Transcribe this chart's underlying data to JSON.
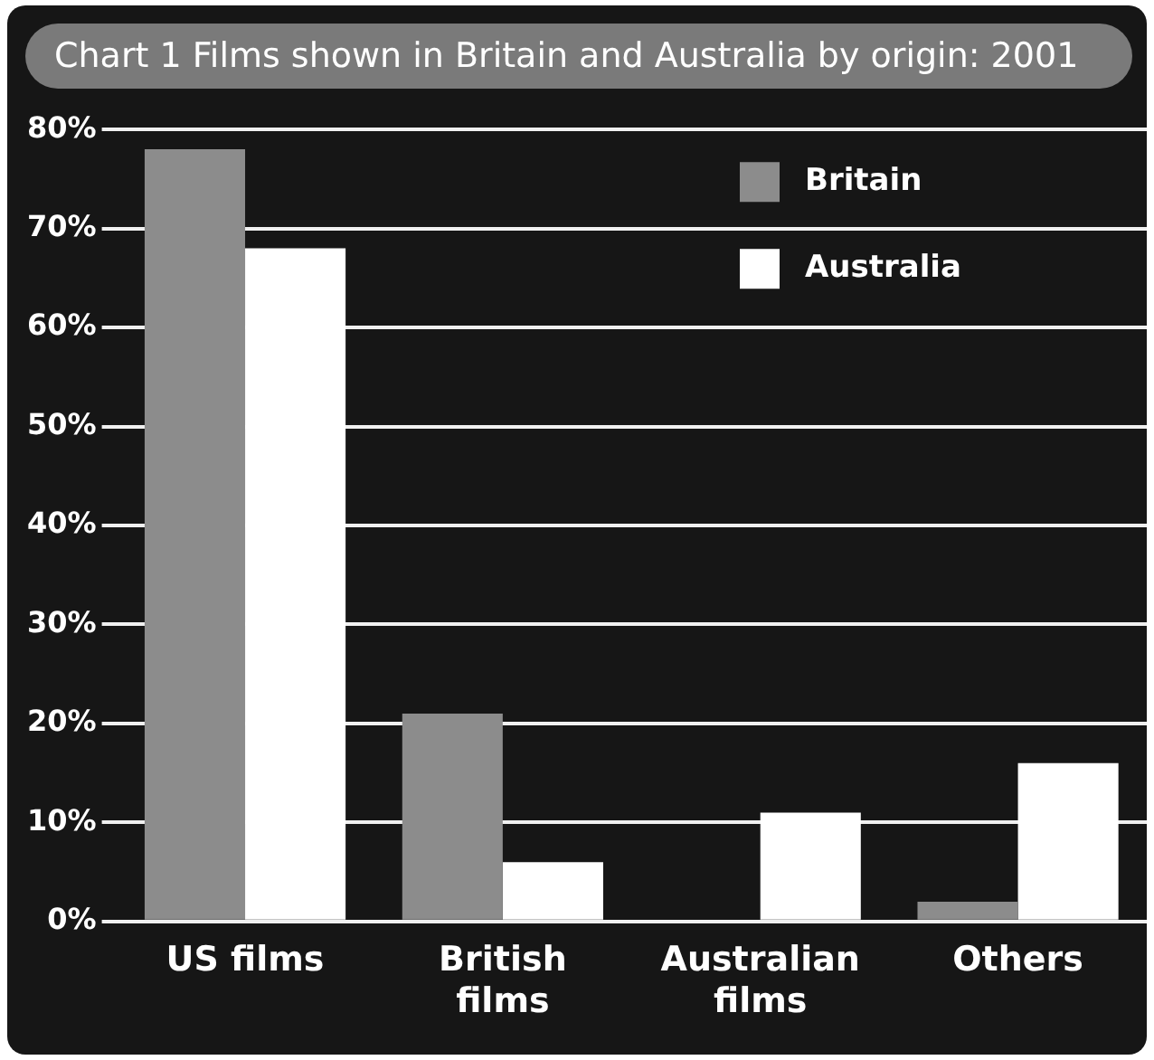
{
  "chart_data": {
    "type": "bar",
    "title": "Chart 1  Films shown in Britain and Australia by origin: 2001",
    "categories": [
      "US films",
      "British films",
      "Australian films",
      "Others"
    ],
    "series": [
      {
        "name": "Britain",
        "color": "#8c8c8c",
        "values": [
          78,
          21,
          0,
          2
        ]
      },
      {
        "name": "Australia",
        "color": "#ffffff",
        "values": [
          68,
          6,
          11,
          16
        ]
      }
    ],
    "ylim": [
      0,
      80
    ],
    "yticks": [
      {
        "value": 0,
        "label": "0%"
      },
      {
        "value": 10,
        "label": "10%"
      },
      {
        "value": 20,
        "label": "20%"
      },
      {
        "value": 30,
        "label": "30%"
      },
      {
        "value": 40,
        "label": "40%"
      },
      {
        "value": 50,
        "label": "50%"
      },
      {
        "value": 60,
        "label": "60%"
      },
      {
        "value": 70,
        "label": "70%"
      },
      {
        "value": 80,
        "label": "80%"
      }
    ],
    "grid": "y",
    "legend": "top right"
  }
}
